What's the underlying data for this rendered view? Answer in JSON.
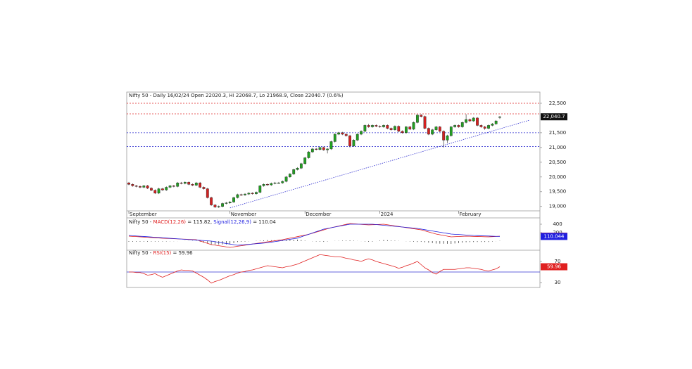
{
  "chart_data": [
    {
      "type": "candlestick",
      "title": "Nifty 50 - Daily 16/02/24 Open 22020.3, Hi 22068.7, Lo 21968.9, Close 22040.7 (0.6%)",
      "categories": [
        "September",
        null,
        null,
        null,
        null,
        null,
        null,
        null,
        null,
        null,
        null,
        null,
        null,
        null,
        null,
        null,
        null,
        null,
        null,
        null,
        null,
        null,
        null,
        null,
        null,
        null,
        null,
        "November",
        null,
        null,
        null,
        null,
        null,
        null,
        null,
        null,
        null,
        null,
        null,
        null,
        null,
        null,
        null,
        null,
        null,
        null,
        null,
        "December",
        null,
        null,
        null,
        null,
        null,
        null,
        null,
        null,
        null,
        null,
        null,
        null,
        null,
        null,
        null,
        null,
        null,
        null,
        null,
        "2024",
        null,
        null,
        null,
        null,
        null,
        null,
        null,
        null,
        null,
        null,
        null,
        null,
        null,
        null,
        null,
        null,
        null,
        null,
        null,
        null,
        "February",
        null,
        null,
        null,
        null,
        null,
        null,
        null,
        null,
        null,
        null,
        null
      ],
      "ohlc": [
        [
          19800,
          19830,
          19720,
          19750
        ],
        [
          19750,
          19780,
          19670,
          19700
        ],
        [
          19700,
          19730,
          19650,
          19680
        ],
        [
          19680,
          19710,
          19620,
          19650
        ],
        [
          19650,
          19730,
          19620,
          19700
        ],
        [
          19700,
          19730,
          19590,
          19620
        ],
        [
          19620,
          19650,
          19520,
          19550
        ],
        [
          19550,
          19580,
          19420,
          19450
        ],
        [
          19450,
          19630,
          19420,
          19600
        ],
        [
          19600,
          19630,
          19530,
          19560
        ],
        [
          19560,
          19680,
          19530,
          19650
        ],
        [
          19650,
          19730,
          19620,
          19700
        ],
        [
          19700,
          19730,
          19650,
          19680
        ],
        [
          19680,
          19830,
          19650,
          19800
        ],
        [
          19800,
          19830,
          19750,
          19780
        ],
        [
          19780,
          19850,
          19750,
          19820
        ],
        [
          19820,
          19850,
          19720,
          19750
        ],
        [
          19750,
          19780,
          19690,
          19720
        ],
        [
          19720,
          19830,
          19690,
          19800
        ],
        [
          19800,
          19830,
          19620,
          19650
        ],
        [
          19650,
          19680,
          19570,
          19600
        ],
        [
          19600,
          19630,
          19270,
          19300
        ],
        [
          19300,
          19330,
          19020,
          19050
        ],
        [
          19050,
          19080,
          18950,
          18980
        ],
        [
          18980,
          19030,
          18950,
          19000
        ],
        [
          19000,
          19130,
          18970,
          19100
        ],
        [
          19100,
          19150,
          19070,
          19120
        ],
        [
          19120,
          19180,
          19090,
          19150
        ],
        [
          19150,
          19330,
          19120,
          19300
        ],
        [
          19300,
          19430,
          19270,
          19400
        ],
        [
          19400,
          19430,
          19360,
          19390
        ],
        [
          19390,
          19450,
          19360,
          19420
        ],
        [
          19420,
          19480,
          19390,
          19450
        ],
        [
          19450,
          19480,
          19400,
          19430
        ],
        [
          19430,
          19510,
          19400,
          19480
        ],
        [
          19480,
          19730,
          19450,
          19700
        ],
        [
          19700,
          19780,
          19670,
          19750
        ],
        [
          19750,
          19780,
          19700,
          19730
        ],
        [
          19730,
          19810,
          19700,
          19780
        ],
        [
          19780,
          19830,
          19750,
          19800
        ],
        [
          19800,
          19830,
          19770,
          19800
        ],
        [
          19800,
          19880,
          19770,
          19850
        ],
        [
          19850,
          20030,
          19820,
          20000
        ],
        [
          20000,
          20130,
          19970,
          20100
        ],
        [
          20100,
          20280,
          20070,
          20250
        ],
        [
          20250,
          20330,
          20220,
          20300
        ],
        [
          20300,
          20480,
          20270,
          20450
        ],
        [
          20450,
          20680,
          20420,
          20650
        ],
        [
          20650,
          20880,
          20620,
          20850
        ],
        [
          20850,
          20980,
          20820,
          20950
        ],
        [
          20950,
          20980,
          20900,
          20930
        ],
        [
          20930,
          21030,
          20900,
          21000
        ],
        [
          21000,
          21030,
          20890,
          20920
        ],
        [
          20920,
          20980,
          20800,
          20950
        ],
        [
          20950,
          21230,
          20920,
          21200
        ],
        [
          21200,
          21480,
          21170,
          21450
        ],
        [
          21450,
          21530,
          21420,
          21500
        ],
        [
          21500,
          21530,
          21420,
          21450
        ],
        [
          21450,
          21480,
          21370,
          21400
        ],
        [
          21400,
          21430,
          21000,
          21050
        ],
        [
          21050,
          21280,
          21020,
          21250
        ],
        [
          21250,
          21480,
          21220,
          21450
        ],
        [
          21450,
          21580,
          21420,
          21550
        ],
        [
          21550,
          21780,
          21520,
          21750
        ],
        [
          21750,
          21800,
          21670,
          21700
        ],
        [
          21700,
          21780,
          21670,
          21750
        ],
        [
          21750,
          21780,
          21690,
          21720
        ],
        [
          21720,
          21750,
          21670,
          21700
        ],
        [
          21700,
          21780,
          21670,
          21750
        ],
        [
          21750,
          21780,
          21620,
          21650
        ],
        [
          21650,
          21680,
          21570,
          21600
        ],
        [
          21600,
          21750,
          21570,
          21720
        ],
        [
          21720,
          21750,
          21520,
          21550
        ],
        [
          21550,
          21580,
          21470,
          21500
        ],
        [
          21500,
          21730,
          21470,
          21700
        ],
        [
          21700,
          21730,
          21590,
          21620
        ],
        [
          21620,
          21880,
          21590,
          21850
        ],
        [
          21850,
          22130,
          21820,
          22100
        ],
        [
          22100,
          22130,
          22020,
          22050
        ],
        [
          22050,
          22080,
          21620,
          21650
        ],
        [
          21650,
          21680,
          21420,
          21450
        ],
        [
          21450,
          21630,
          21420,
          21600
        ],
        [
          21600,
          21730,
          21570,
          21700
        ],
        [
          21700,
          21730,
          21520,
          21550
        ],
        [
          21550,
          21580,
          21000,
          21250
        ],
        [
          21250,
          21430,
          21150,
          21400
        ],
        [
          21400,
          21730,
          21370,
          21700
        ],
        [
          21700,
          21780,
          21670,
          21750
        ],
        [
          21750,
          21780,
          21670,
          21700
        ],
        [
          21700,
          21880,
          21670,
          21850
        ],
        [
          21850,
          22130,
          21820,
          21950
        ],
        [
          21950,
          21980,
          21870,
          21900
        ],
        [
          21900,
          22030,
          21870,
          22000
        ],
        [
          22000,
          22030,
          21720,
          21750
        ],
        [
          21750,
          21780,
          21670,
          21700
        ],
        [
          21700,
          21730,
          21600,
          21650
        ],
        [
          21650,
          21780,
          21620,
          21750
        ],
        [
          21750,
          21830,
          21720,
          21800
        ],
        [
          21800,
          21930,
          21770,
          21900
        ],
        [
          22020.3,
          22068.7,
          21968.9,
          22040.7
        ]
      ],
      "up_color": "#22a022",
      "down_color": "#d42020",
      "ylim": [
        18850,
        22880
      ],
      "yticks": [
        {
          "value": 19000,
          "label": "19,000"
        },
        {
          "value": 19500,
          "label": "19,500"
        },
        {
          "value": 20000,
          "label": "20,000"
        },
        {
          "value": 20500,
          "label": "20,500"
        },
        {
          "value": 21000,
          "label": "21,000"
        },
        {
          "value": 21500,
          "label": "21,500"
        },
        {
          "value": 22500,
          "label": "22,500"
        }
      ],
      "hlines": [
        {
          "value": 22500,
          "color": "#e03030"
        },
        {
          "value": 22140,
          "color": "#e03030"
        },
        {
          "value": 21500,
          "color": "#3030d0"
        },
        {
          "value": 21030,
          "color": "#3030d0"
        }
      ],
      "trendline": {
        "x": [
          27,
          107
        ],
        "y": [
          18950,
          21930
        ],
        "color": "#3030d0"
      },
      "last_label": "22,040.7"
    },
    {
      "type": "macd",
      "title_parts": [
        "Nifty 50 - ",
        " = 115.82, ",
        " = 110.04"
      ],
      "series": [
        {
          "name": "MACD(12,26)",
          "color": "#e02020",
          "last_label": "115.82",
          "values": [
            117,
            111,
            106,
            100,
            95,
            89,
            84,
            78,
            73,
            67,
            63,
            60,
            56,
            52,
            48,
            45,
            41,
            37,
            33,
            4,
            -25,
            -54,
            -83,
            -96,
            -110,
            -123,
            -137,
            -150,
            -137,
            -123,
            -110,
            -97,
            -83,
            -70,
            -57,
            -44,
            -31,
            -18,
            -5,
            8,
            20,
            33,
            51,
            69,
            87,
            105,
            124,
            142,
            160,
            186,
            212,
            238,
            265,
            291,
            317,
            337,
            357,
            377,
            397,
            417,
            410,
            403,
            397,
            390,
            383,
            387,
            391,
            396,
            400,
            387,
            373,
            360,
            347,
            333,
            320,
            307,
            293,
            280,
            267,
            242,
            217,
            192,
            167,
            150,
            133,
            117,
            100,
            104,
            108,
            113,
            117,
            114,
            111,
            109,
            106,
            103,
            100,
            105,
            110,
            115.82
          ]
        },
        {
          "name": "Signal(12,26,9)",
          "color": "#2020e0",
          "last_label": "110.044",
          "values": [
            133,
            127,
            121,
            115,
            109,
            103,
            97,
            90,
            84,
            78,
            72,
            66,
            60,
            54,
            48,
            42,
            36,
            30,
            24,
            18,
            12,
            6,
            0,
            -14,
            -29,
            -43,
            -57,
            -71,
            -86,
            -100,
            -93,
            -85,
            -78,
            -70,
            -63,
            -55,
            -48,
            -40,
            -26,
            -13,
            1,
            15,
            29,
            43,
            56,
            70,
            100,
            131,
            161,
            192,
            222,
            253,
            283,
            300,
            316,
            333,
            350,
            366,
            383,
            400,
            400,
            400,
            400,
            400,
            400,
            400,
            392,
            383,
            375,
            367,
            358,
            350,
            342,
            333,
            325,
            317,
            308,
            300,
            285,
            270,
            255,
            240,
            225,
            211,
            196,
            182,
            167,
            161,
            156,
            150,
            144,
            139,
            133,
            130,
            126,
            123,
            120,
            116,
            113,
            110.044
          ]
        }
      ],
      "histogram": [
        -16,
        -16,
        -15,
        -15,
        -14,
        -14,
        -13,
        -12,
        -11,
        -11,
        -9,
        -6,
        -4,
        -2,
        0,
        3,
        5,
        7,
        9,
        -14,
        -37,
        -60,
        -83,
        -82,
        -81,
        -80,
        -80,
        -79,
        -51,
        -23,
        -17,
        -12,
        -5,
        0,
        6,
        11,
        17,
        22,
        21,
        21,
        19,
        18,
        22,
        26,
        31,
        35,
        24,
        11,
        -1,
        -6,
        -10,
        -15,
        -18,
        -9,
        1,
        4,
        7,
        11,
        14,
        17,
        10,
        3,
        -3,
        -10,
        -17,
        -13,
        -1,
        13,
        25,
        20,
        15,
        10,
        5,
        0,
        -5,
        -10,
        -15,
        -20,
        -18,
        -28,
        -38,
        -48,
        -58,
        -61,
        -63,
        -65,
        -67,
        -57,
        -48,
        -37,
        -27,
        -25,
        -22,
        -21,
        -20,
        -20,
        -20,
        -11,
        -3,
        6
      ],
      "ylim": [
        -200,
        500
      ],
      "yticks": [
        200,
        400
      ]
    },
    {
      "type": "rsi",
      "title_parts": [
        "Nifty 50 - ",
        " = 59.96"
      ],
      "series": [
        {
          "name": "RSI(15)",
          "color": "#e02020",
          "last_label": "59.96",
          "values": [
            50,
            50,
            49,
            49,
            47,
            44,
            45,
            47,
            43,
            40,
            43,
            46,
            49,
            52,
            54,
            53,
            53,
            52,
            48,
            44,
            40,
            35,
            29,
            32,
            34,
            37,
            40,
            43,
            45,
            48,
            50,
            51,
            53,
            54,
            56,
            58,
            60,
            62,
            61,
            60,
            59,
            58,
            60,
            61,
            63,
            65,
            68,
            71,
            74,
            77,
            80,
            83,
            82,
            81,
            80,
            79,
            79,
            78,
            76,
            75,
            73,
            72,
            70,
            73,
            75,
            73,
            70,
            68,
            66,
            64,
            62,
            60,
            57,
            59,
            62,
            64,
            67,
            70,
            64,
            58,
            54,
            49,
            46,
            51,
            55,
            55,
            55,
            55,
            56,
            57,
            58,
            58,
            57,
            56,
            55,
            53,
            52,
            54,
            56,
            59.96
          ]
        }
      ],
      "hline": {
        "value": 50,
        "color": "#3030d0"
      },
      "ylim": [
        24,
        90
      ],
      "yticks": [
        30,
        70
      ]
    }
  ]
}
